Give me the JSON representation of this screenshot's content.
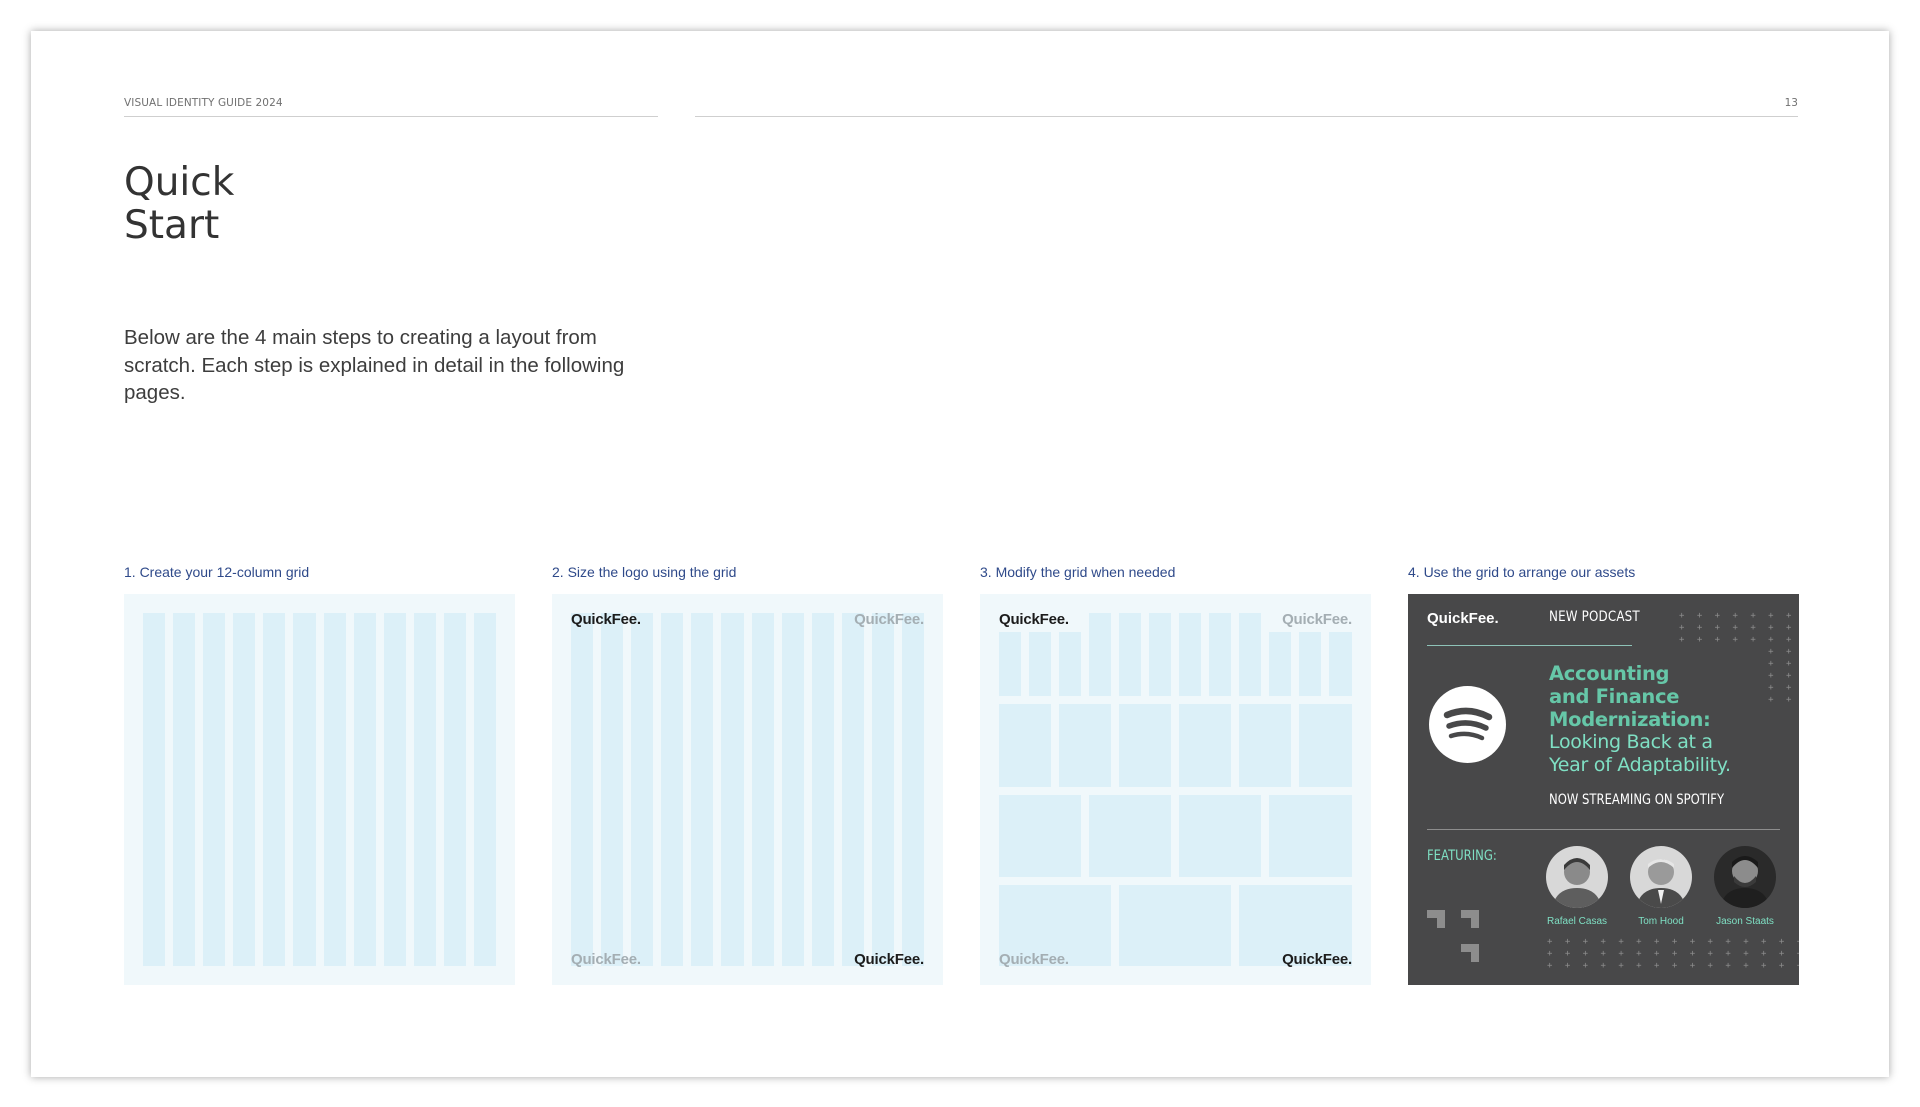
{
  "header": {
    "label": "VISUAL IDENTITY GUIDE 2024",
    "page_number": "13"
  },
  "title": {
    "line1": "Quick",
    "line2": "Start"
  },
  "intro": "Below are the 4 main steps to creating a layout from scratch. Each step is explained in detail in the following pages.",
  "steps": [
    {
      "label": "1. Create your 12-column grid"
    },
    {
      "label": "2. Size the logo using the grid"
    },
    {
      "label": "3. Modify the grid when needed"
    },
    {
      "label": "4. Use the grid to arrange our assets"
    }
  ],
  "logo_text": "QuickFee.",
  "podcast": {
    "logo": "QuickFee.",
    "tag": "NEW PODCAST",
    "headline_bold": [
      "Accounting",
      "and Finance",
      "Modernization:"
    ],
    "headline_regular": [
      "Looking Back at a",
      "Year of Adaptability."
    ],
    "streaming": "NOW STREAMING ON SPOTIFY",
    "featuring": "FEATURING:",
    "speakers": [
      {
        "name": "Rafael Casas"
      },
      {
        "name": "Tom Hood"
      },
      {
        "name": "Jason Staats"
      }
    ]
  },
  "colors": {
    "grid_background": "#f0f8fb",
    "grid_column": "#dcf0f8",
    "step_label": "#2f4a8a",
    "podcast_background": "#484849",
    "podcast_accent": "#7fe0c4"
  }
}
